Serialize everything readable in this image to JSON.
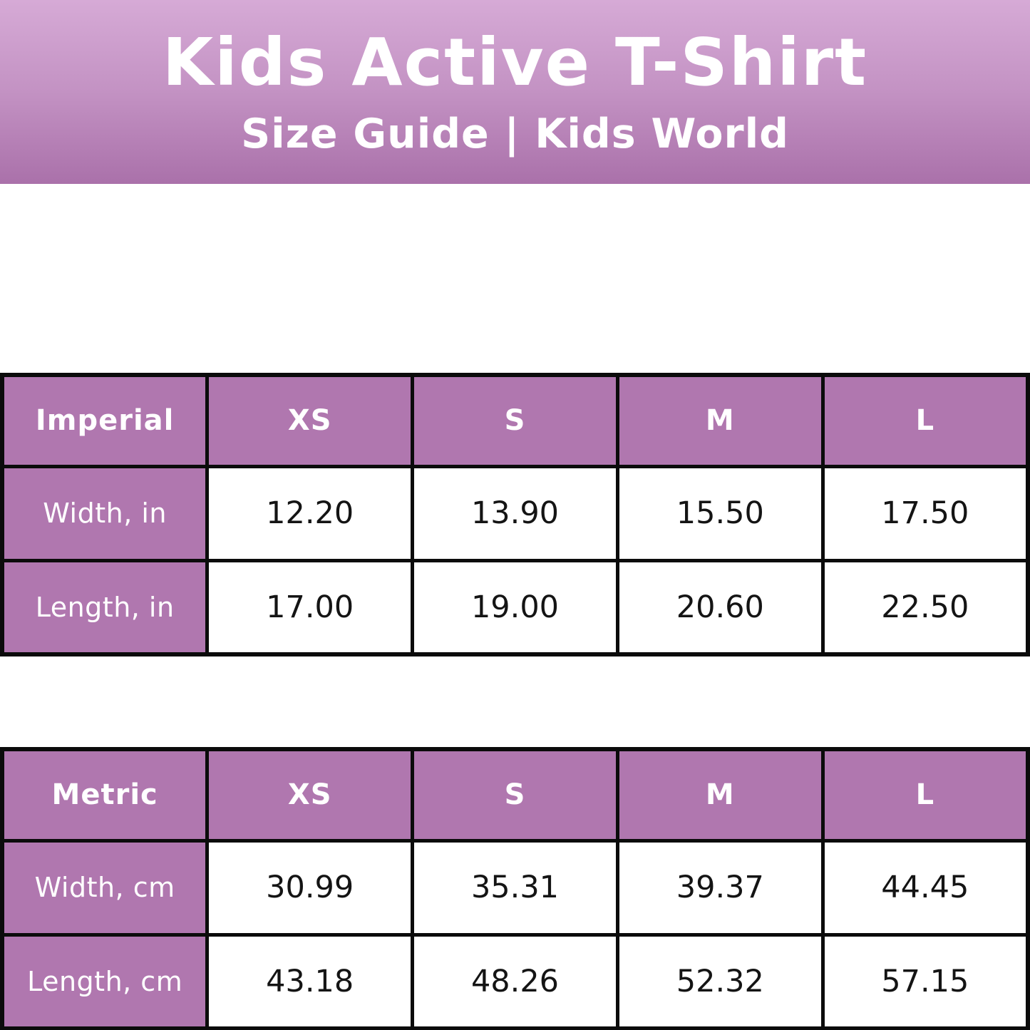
{
  "banner": {
    "title": "Kids Active T-Shirt",
    "subtitle": "Size Guide | Kids World"
  },
  "imperial_table": {
    "headers": [
      "Imperial",
      "XS",
      "S",
      "M",
      "L"
    ],
    "rows": [
      {
        "label": "Width, in",
        "values": [
          "12.20",
          "13.90",
          "15.50",
          "17.50"
        ]
      },
      {
        "label": "Length, in",
        "values": [
          "17.00",
          "19.00",
          "20.60",
          "22.50"
        ]
      }
    ]
  },
  "metric_table": {
    "headers": [
      "Metric",
      "XS",
      "S",
      "M",
      "L"
    ],
    "rows": [
      {
        "label": "Width, cm",
        "values": [
          "30.99",
          "35.31",
          "39.37",
          "44.45"
        ]
      },
      {
        "label": "Length, cm",
        "values": [
          "43.18",
          "48.26",
          "52.32",
          "57.15"
        ]
      }
    ]
  },
  "colors": {
    "banner_gradient_top": "#d6aad6",
    "banner_gradient_bottom": "#aa71aa",
    "cell_purple": "#b077af",
    "border_black": "#0b0b0b",
    "text_white": "#ffffff",
    "text_black": "#141414"
  }
}
